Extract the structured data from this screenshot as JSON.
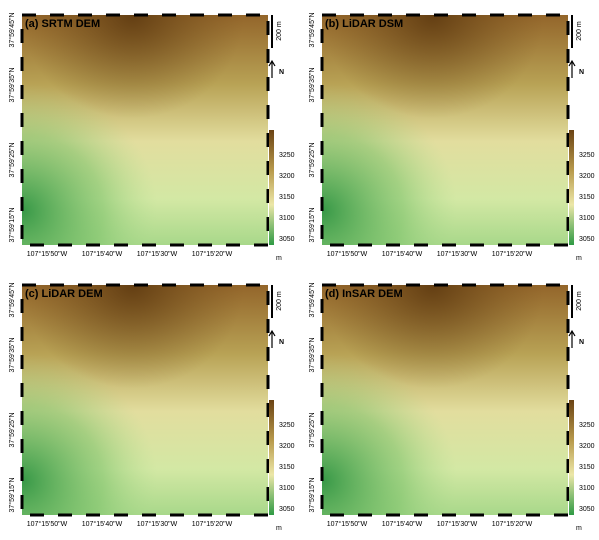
{
  "panels": [
    {
      "title": "(a) SRTM DEM",
      "latitude_labels": [
        "37°59'45\"N",
        "37°59'35\"N",
        "37°59'25\"N",
        "37°59'15\"N"
      ],
      "longitude_labels": [
        "107°15'50\"W",
        "107°15'40\"W",
        "107°15'30\"W",
        "107°15'20\"W"
      ],
      "scale_bar": "200 m",
      "north": "N",
      "colorbar": {
        "ticks": [
          3250,
          3200,
          3150,
          3100,
          3050
        ],
        "unit": "m"
      }
    },
    {
      "title": "(b) LiDAR DSM",
      "latitude_labels": [
        "37°59'45\"N",
        "37°59'35\"N",
        "37°59'25\"N",
        "37°59'15\"N"
      ],
      "longitude_labels": [
        "107°15'50\"W",
        "107°15'40\"W",
        "107°15'30\"W",
        "107°15'20\"W"
      ],
      "scale_bar": "200 m",
      "north": "N",
      "colorbar": {
        "ticks": [
          3250,
          3200,
          3150,
          3100,
          3050
        ],
        "unit": "m"
      }
    },
    {
      "title": "(c) LiDAR DEM",
      "latitude_labels": [
        "37°59'45\"N",
        "37°59'35\"N",
        "37°59'25\"N",
        "37°59'15\"N"
      ],
      "longitude_labels": [
        "107°15'50\"W",
        "107°15'40\"W",
        "107°15'30\"W",
        "107°15'20\"W"
      ],
      "scale_bar": "200 m",
      "north": "N",
      "colorbar": {
        "ticks": [
          3250,
          3200,
          3150,
          3100,
          3050
        ],
        "unit": "m"
      }
    },
    {
      "title": "(d) InSAR DEM",
      "latitude_labels": [
        "37°59'45\"N",
        "37°59'35\"N",
        "37°59'25\"N",
        "37°59'15\"N"
      ],
      "longitude_labels": [
        "107°15'50\"W",
        "107°15'40\"W",
        "107°15'30\"W",
        "107°15'20\"W"
      ],
      "scale_bar": "200 m",
      "north": "N",
      "colorbar": {
        "ticks": [
          3250,
          3200,
          3150,
          3100,
          3050
        ],
        "unit": "m"
      }
    }
  ]
}
